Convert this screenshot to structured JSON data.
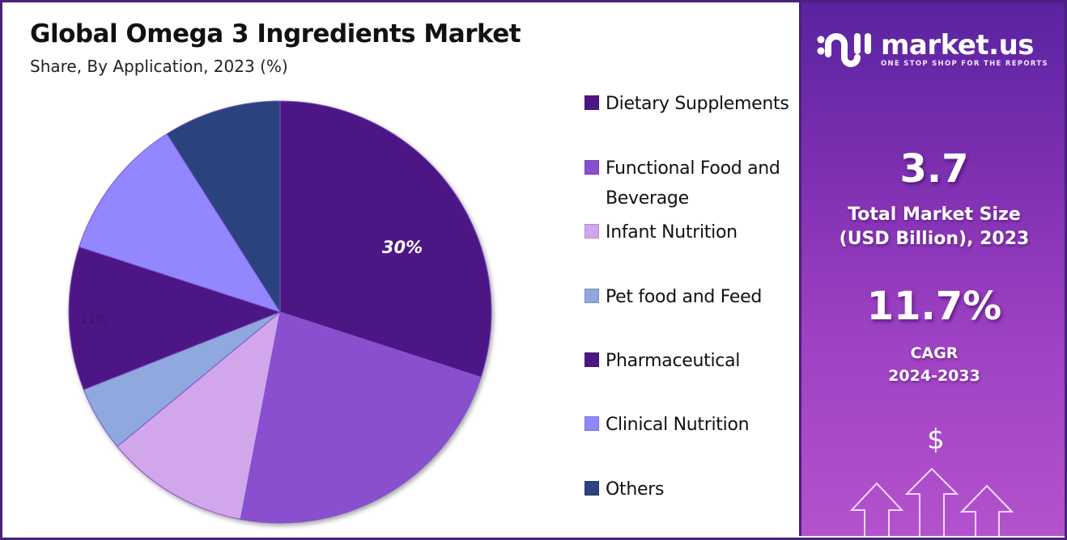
{
  "header": {
    "title": "Global Omega 3 Ingredients Market",
    "subtitle": "Share, By Application, 2023 (%)"
  },
  "legend": {
    "items": [
      {
        "label": "Dietary Supplements",
        "color": "#4e1685"
      },
      {
        "label": "Functional Food and Beverage",
        "color": "#8a4fcf"
      },
      {
        "label": "Infant Nutrition",
        "color": "#d2a6ea"
      },
      {
        "label": "Pet food and Feed",
        "color": "#8fa8dd"
      },
      {
        "label": "Pharmaceutical",
        "color": "#4e1685"
      },
      {
        "label": "Clinical Nutrition",
        "color": "#9287ff"
      },
      {
        "label": "Others",
        "color": "#2b437e"
      }
    ]
  },
  "pie_labels": {
    "dietary": "30%",
    "pharmaceutical": "11%"
  },
  "sidebar": {
    "brand_name": "market.us",
    "brand_tagline": "ONE STOP SHOP FOR THE REPORTS",
    "market_size_value": "3.7",
    "market_size_label_line1": "Total Market Size",
    "market_size_label_line2": "(USD Billion), 2023",
    "cagr_value": "11.7%",
    "cagr_label_line1": "CAGR",
    "cagr_label_line2": "2024-2033",
    "dollar_symbol": "$"
  },
  "chart_data": {
    "type": "pie",
    "title": "Global Omega 3 Ingredients Market",
    "subtitle": "Share, By Application, 2023 (%)",
    "categories": [
      "Dietary Supplements",
      "Functional Food and Beverage",
      "Infant Nutrition",
      "Pet food and Feed",
      "Pharmaceutical",
      "Clinical Nutrition",
      "Others"
    ],
    "values": [
      30,
      23,
      11,
      5,
      11,
      11,
      9
    ],
    "colors": [
      "#4e1685",
      "#8a4fcf",
      "#d2a6ea",
      "#8fa8dd",
      "#4e1685",
      "#9287ff",
      "#2b437e"
    ],
    "labeled_values": {
      "Dietary Supplements": "30%",
      "Pharmaceutical": "11%"
    },
    "start_angle_deg": 0,
    "direction": "clockwise",
    "legend_position": "right",
    "unit": "%"
  }
}
